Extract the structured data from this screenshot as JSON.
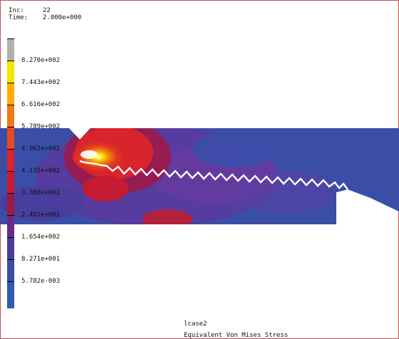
{
  "header": {
    "inc_label": "Inc:",
    "inc_value": "22",
    "time_label": "Time:",
    "time_value": "2.000e+000"
  },
  "legend": {
    "colors": [
      "#b0b0b0",
      "#f2e600",
      "#ffae00",
      "#ef7a16",
      "#e84a1e",
      "#d8242a",
      "#c61a32",
      "#9c1a48",
      "#6a2a8c",
      "#4a3c9a",
      "#3a4ea8",
      "#2f5ab0",
      "#555555"
    ],
    "labels": [
      "8.270e+002",
      "7.443e+002",
      "6.616e+002",
      "5.789e+002",
      "4.962e+002",
      "4.135e+002",
      "3.308e+002",
      "2.481e+002",
      "1.654e+002",
      "8.271e+001",
      "5.782e-003"
    ]
  },
  "footer": {
    "case": "lcase2",
    "title": "Equivalent Von Mises Stress"
  }
}
